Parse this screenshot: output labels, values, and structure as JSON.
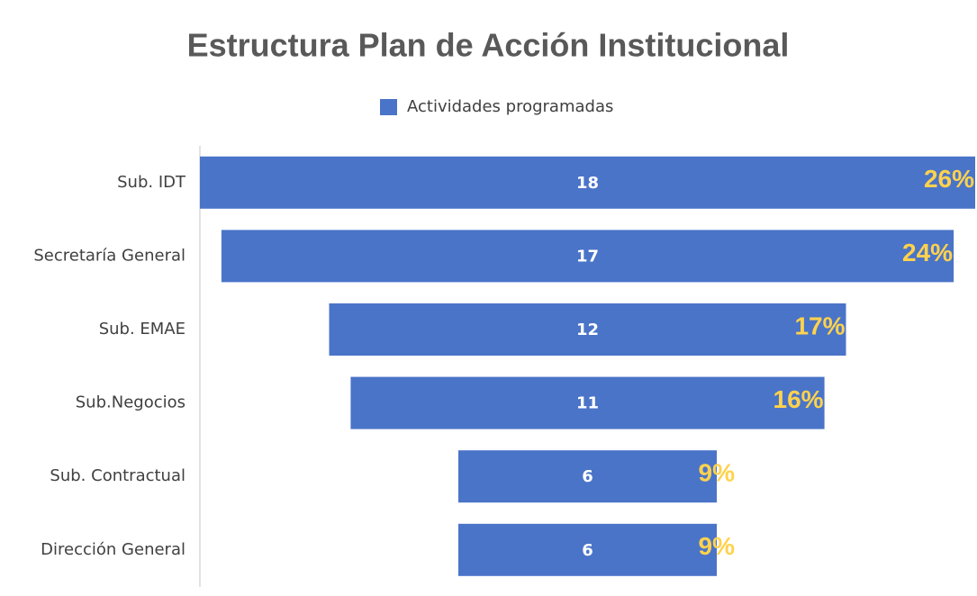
{
  "chart_data": {
    "type": "funnel",
    "title": "Estructura Plan de Acción Institucional",
    "categories": [
      "Sub. IDT",
      "Secretaría General",
      "Sub. EMAE",
      "Sub.Negocios",
      "Sub. Contractual",
      "Dirección General"
    ],
    "series": [
      {
        "name": "Actividades programadas",
        "color": "#4a74c8",
        "values": [
          18,
          17,
          12,
          11,
          6,
          6
        ],
        "percent_labels": [
          "26%",
          "24%",
          "17%",
          "16%",
          "9%",
          "9%"
        ]
      }
    ],
    "legend": "top"
  }
}
